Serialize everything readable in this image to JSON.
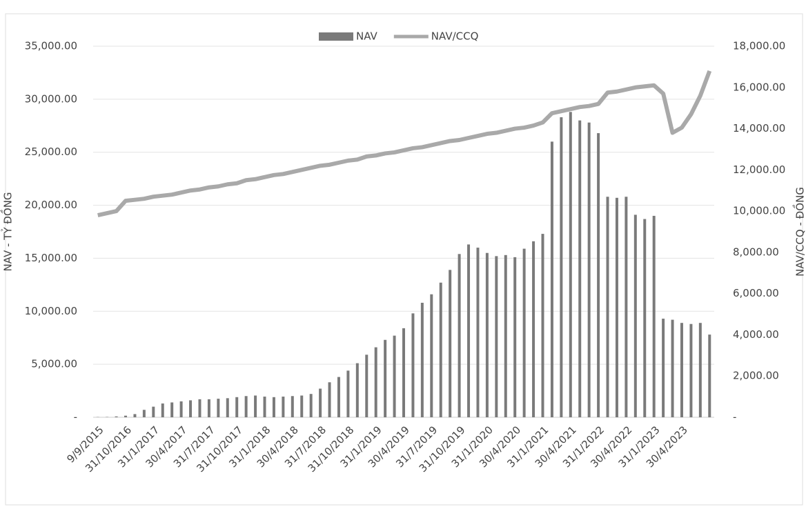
{
  "chart_data": {
    "type": "bar_line",
    "y_label": "NAV - TỶ ĐỒNG",
    "y2_label": "NAV/CCQ - ĐỒNG",
    "categories": [
      "9/9/2015",
      null,
      null,
      "31/10/2016",
      null,
      null,
      "31/1/2017",
      null,
      null,
      "30/4/2017",
      null,
      null,
      "31/7/2017",
      null,
      null,
      "31/10/2017",
      null,
      null,
      "31/1/2018",
      null,
      null,
      "30/4/2018",
      null,
      null,
      "31/7/2018",
      null,
      null,
      "31/10/2018",
      null,
      null,
      "31/1/2019",
      null,
      null,
      "30/4/2019",
      null,
      null,
      "31/7/2019",
      null,
      null,
      "31/10/2019",
      null,
      null,
      "31/1/2020",
      null,
      null,
      "30/4/2020",
      null,
      null,
      "31/1/2021",
      null,
      null,
      "30/4/2021",
      null,
      null,
      "31/1/2022",
      null,
      null,
      "30/4/2022",
      null,
      null,
      "31/1/2023",
      null,
      null,
      "30/4/2023",
      null,
      null,
      null
    ],
    "series": [
      {
        "name": "NAV",
        "color": "#7a7a7a",
        "values": [
          20,
          30,
          80,
          150,
          300,
          700,
          1000,
          1300,
          1400,
          1500,
          1600,
          1700,
          1700,
          1750,
          1800,
          1900,
          2000,
          2050,
          1950,
          1900,
          1950,
          2000,
          2050,
          2200,
          2700,
          3300,
          3800,
          4400,
          5100,
          5900,
          6600,
          7300,
          7700,
          8400,
          9800,
          10800,
          11600,
          12700,
          13900,
          15400,
          16300,
          16000,
          15500,
          15200,
          15300,
          15100,
          15900,
          16600,
          17300,
          26000,
          28300,
          28800,
          28000,
          27800,
          26800,
          20800,
          20700,
          20800,
          19100,
          18700,
          19000,
          9300,
          9200,
          8900,
          8800,
          8900,
          7800
        ]
      },
      {
        "name": "NAV/CCQ",
        "color": "#a9a9a9",
        "axis": "y2",
        "values": [
          9800,
          9900,
          10000,
          10500,
          10550,
          10600,
          10700,
          10750,
          10800,
          10900,
          11000,
          11050,
          11150,
          11200,
          11300,
          11350,
          11500,
          11550,
          11650,
          11750,
          11800,
          11900,
          12000,
          12100,
          12200,
          12250,
          12350,
          12450,
          12500,
          12650,
          12700,
          12800,
          12850,
          12950,
          13050,
          13100,
          13200,
          13300,
          13400,
          13450,
          13550,
          13650,
          13750,
          13800,
          13900,
          14000,
          14050,
          14150,
          14300,
          14750,
          14850,
          14950,
          15050,
          15100,
          15200,
          15750,
          15800,
          15900,
          16000,
          16050,
          16100,
          15700,
          13800,
          14050,
          14700,
          15600,
          16800
        ]
      }
    ],
    "ylim": [
      0,
      35000
    ],
    "yticks": [
      {
        "value": 0,
        "label": "-"
      },
      {
        "value": 5000,
        "label": "5,000.00"
      },
      {
        "value": 10000,
        "label": "10,000.00"
      },
      {
        "value": 15000,
        "label": "15,000.00"
      },
      {
        "value": 20000,
        "label": "20,000.00"
      },
      {
        "value": 25000,
        "label": "25,000.00"
      },
      {
        "value": 30000,
        "label": "30,000.00"
      },
      {
        "value": 35000,
        "label": "35,000.00"
      }
    ],
    "y2lim": [
      0,
      18000
    ],
    "y2ticks": [
      {
        "value": 0,
        "label": "-"
      },
      {
        "value": 2000,
        "label": "2,000.00"
      },
      {
        "value": 4000,
        "label": "4,000.00"
      },
      {
        "value": 6000,
        "label": "6,000.00"
      },
      {
        "value": 8000,
        "label": "8,000.00"
      },
      {
        "value": 10000,
        "label": "10,000.00"
      },
      {
        "value": 12000,
        "label": "12,000.00"
      },
      {
        "value": 14000,
        "label": "14,000.00"
      },
      {
        "value": 16000,
        "label": "16,000.00"
      },
      {
        "value": 18000,
        "label": "18,000.00"
      }
    ],
    "grid": true,
    "legend": "top"
  }
}
